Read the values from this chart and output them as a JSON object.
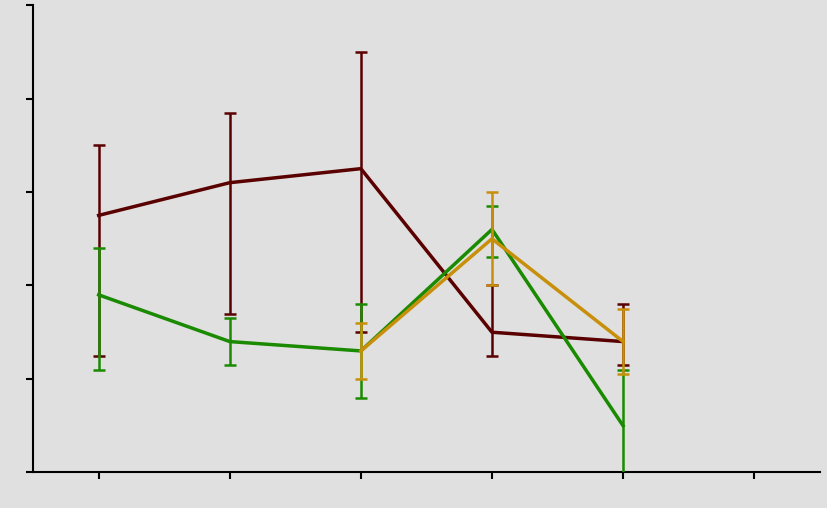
{
  "x": [
    1,
    2,
    3,
    4,
    5,
    6
  ],
  "dark_red": {
    "y": [
      55,
      62,
      65,
      30,
      28,
      null
    ],
    "yerr_lo": [
      30,
      28,
      35,
      5,
      5,
      null
    ],
    "yerr_hi": [
      15,
      15,
      25,
      10,
      8,
      null
    ],
    "color": "#5a0000"
  },
  "green": {
    "y": [
      38,
      28,
      26,
      52,
      10,
      null
    ],
    "yerr_lo": [
      16,
      5,
      10,
      6,
      12,
      null
    ],
    "yerr_hi": [
      10,
      5,
      10,
      5,
      12,
      null
    ],
    "color": "#1a8a00"
  },
  "gold": {
    "y": [
      null,
      null,
      26,
      50,
      28,
      null
    ],
    "yerr_lo": [
      null,
      null,
      6,
      10,
      7,
      null
    ],
    "yerr_hi": [
      null,
      null,
      6,
      10,
      7,
      null
    ],
    "color": "#c8900a"
  },
  "background_color": "#e0e0e0",
  "ylim": [
    0,
    100
  ],
  "xlim": [
    0.5,
    6.5
  ],
  "x_ticks": [
    1,
    2,
    3,
    4,
    5,
    6
  ],
  "y_ticks": [
    0,
    20,
    40,
    60,
    80,
    100
  ]
}
